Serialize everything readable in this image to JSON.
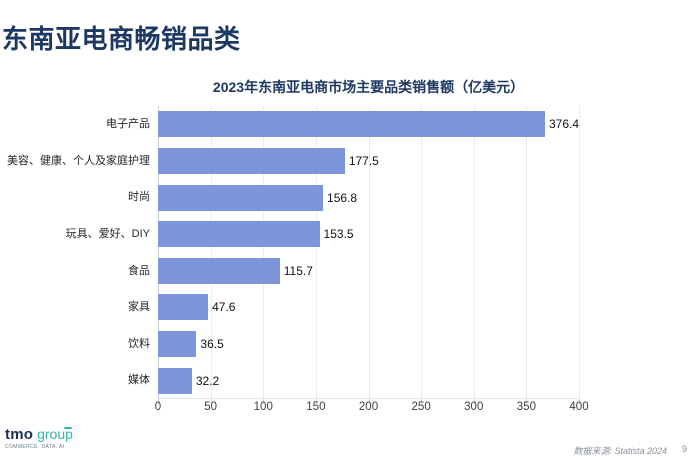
{
  "page": {
    "title": "东南亚电商畅销品类",
    "page_number": "9",
    "source": "数据来源: Statista 2024"
  },
  "logo": {
    "brand": "tmo",
    "brand_suffix": "group",
    "tagline": "COMMERCE. DATA. AI"
  },
  "colors": {
    "title_navy": "#1e3864",
    "bar_fill": "#7d96db",
    "gridline": "#ebebeb",
    "axis_line": "#c9cdd2",
    "logo_navy": "#1c2f55",
    "logo_teal": "#35b5ac",
    "source_gray": "#8a909a"
  },
  "chart_data": {
    "type": "bar",
    "orientation": "horizontal",
    "title": "2023年东南亚电商市场主要品类销售额（亿美元）",
    "categories": [
      "电子产品",
      "美容、健康、个人及家庭护理",
      "时尚",
      "玩具、爱好、DIY",
      "食品",
      "家具",
      "饮料",
      "媒体"
    ],
    "values": [
      376.4,
      177.5,
      156.8,
      153.5,
      115.7,
      47.6,
      36.5,
      32.2
    ],
    "xlabel": "",
    "ylabel": "",
    "xlim": [
      0,
      400
    ],
    "xticks": [
      0,
      50,
      100,
      150,
      200,
      250,
      300,
      350,
      400
    ],
    "grid": true,
    "value_labels_shown": true,
    "bar_color": "#7d96db",
    "legend": "none"
  }
}
